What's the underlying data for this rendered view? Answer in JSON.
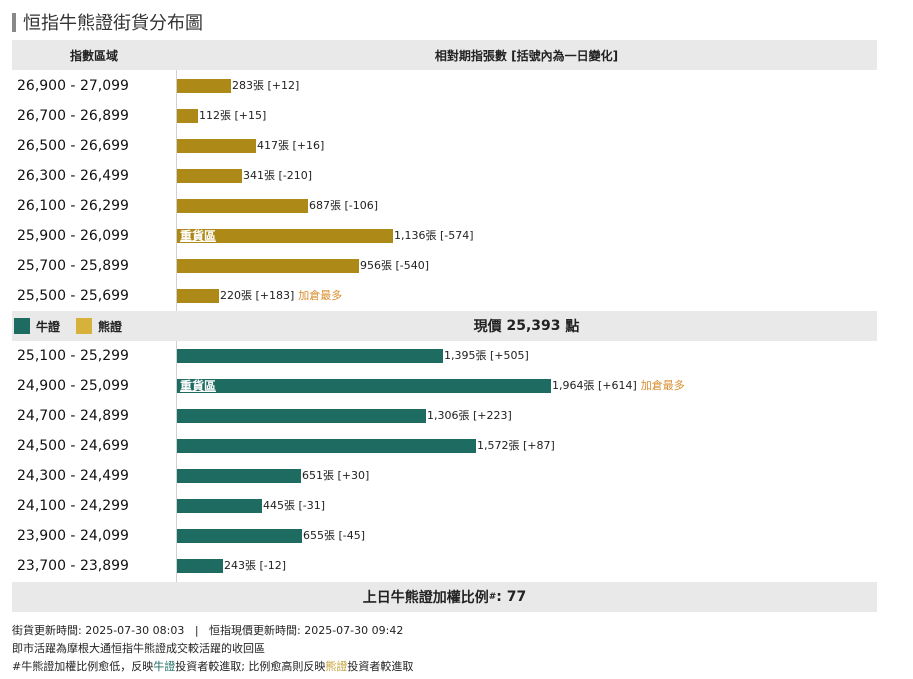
{
  "title": "恒指牛熊證街貨分布圖",
  "header": {
    "col1": "指數區域",
    "col2": "相對期指張數 [括號內為一日變化]"
  },
  "colors": {
    "bear": "#ad8a18",
    "bull": "#1e6b62",
    "bear_legend": "#d6b23c",
    "note": "#d98c2b"
  },
  "legend": {
    "bull": "牛證",
    "bear": "熊證"
  },
  "current_price": {
    "label": "現價",
    "value": "25,393",
    "unit": "點"
  },
  "ratio": {
    "label": "上日牛熊證加權比例",
    "mark": "#",
    "value": ": 77"
  },
  "footer": {
    "line1": "街貨更新時間: 2025-07-30 08:03   |   恒指現價更新時間: 2025-07-30 09:42",
    "line2": "即市活躍為摩根大通恒指牛熊證成交較活躍的收回區",
    "line3_a": "#牛熊證加權比例愈低，反映",
    "line3_b": "牛證",
    "line3_c": "投資者較進取; 比例愈高則反映",
    "line3_d": "熊證",
    "line3_e": "投資者較進取"
  },
  "chart_data": {
    "type": "bar",
    "orientation": "horizontal",
    "x_unit": "張",
    "series": [
      {
        "name": "熊證",
        "categories": [
          "26,900 - 27,099",
          "26,700 - 26,899",
          "26,500 - 26,699",
          "26,300 - 26,499",
          "26,100 - 26,299",
          "25,900 - 26,099",
          "25,700 - 25,899",
          "25,500 - 25,699"
        ],
        "values": [
          283,
          112,
          417,
          341,
          687,
          1136,
          956,
          220
        ],
        "labels": [
          "283張 [+12]",
          "112張 [+15]",
          "417張 [+16]",
          "341張 [-210]",
          "687張 [-106]",
          "1,136張 [-574]",
          "956張 [-540]",
          "220張 [+183]"
        ],
        "changes": [
          12,
          15,
          16,
          -210,
          -106,
          -574,
          -540,
          183
        ],
        "tags": [
          "",
          "",
          "",
          "",
          "",
          "重貨區",
          "",
          ""
        ],
        "notes": [
          "",
          "",
          "",
          "",
          "",
          "",
          "",
          "加倉最多"
        ]
      },
      {
        "name": "牛證",
        "categories": [
          "25,100 - 25,299",
          "24,900 - 25,099",
          "24,700 - 24,899",
          "24,500 - 24,699",
          "24,300 - 24,499",
          "24,100 - 24,299",
          "23,900 - 24,099",
          "23,700 - 23,899"
        ],
        "values": [
          1395,
          1964,
          1306,
          1572,
          651,
          445,
          655,
          243
        ],
        "labels": [
          "1,395張 [+505]",
          "1,964張 [+614]",
          "1,306張 [+223]",
          "1,572張 [+87]",
          "651張 [+30]",
          "445張 [-31]",
          "655張 [-45]",
          "243張 [-12]"
        ],
        "changes": [
          505,
          614,
          223,
          87,
          30,
          -31,
          -45,
          -12
        ],
        "tags": [
          "",
          "重貨區",
          "",
          "",
          "",
          "",
          "",
          ""
        ],
        "notes": [
          "",
          "加倉最多",
          "",
          "",
          "",
          "",
          "",
          ""
        ]
      }
    ]
  }
}
